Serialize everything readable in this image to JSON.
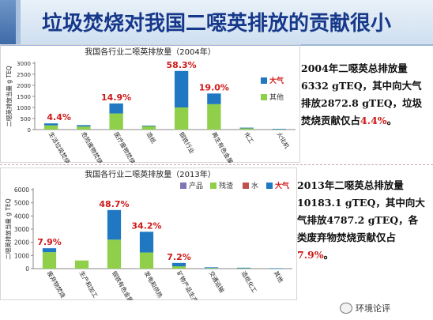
{
  "slide": {
    "title": "垃圾焚烧对我国二噁英排放的贡献很小"
  },
  "chart_data": [
    {
      "type": "bar",
      "stacked": true,
      "title": "我国各行业二噁英排放量（2004年）",
      "ylabel": "二噁英排放当量 g TEQ",
      "ylim": [
        0,
        3000
      ],
      "yticks": [
        0,
        500,
        1000,
        1500,
        2000,
        2500,
        3000
      ],
      "categories": [
        "生活垃圾焚烧",
        "危险废物焚烧",
        "医疗废物焚烧",
        "造纸",
        "钢铁行业",
        "再生有色金属",
        "化工",
        "火化机"
      ],
      "series": [
        {
          "name": "其他",
          "color": "#8fcf4a",
          "values": [
            190,
            140,
            730,
            160,
            1000,
            1150,
            80,
            20
          ]
        },
        {
          "name": "大气",
          "color": "#1f78c1",
          "values": [
            90,
            60,
            450,
            20,
            1650,
            480,
            5,
            10
          ]
        }
      ],
      "annotations": [
        {
          "category_index": 0,
          "text": "4.4%"
        },
        {
          "category_index": 2,
          "text": "14.9%"
        },
        {
          "category_index": 4,
          "text": "58.3%"
        },
        {
          "category_index": 5,
          "text": "19.0%"
        }
      ],
      "legend": "right"
    },
    {
      "type": "bar",
      "stacked": true,
      "title": "我国各行业二噁英排放量（2013年）",
      "ylabel": "二噁英排放当量 g TEQ",
      "ylim": [
        0,
        6000
      ],
      "yticks": [
        0,
        1000,
        2000,
        3000,
        4000,
        5000,
        6000
      ],
      "categories": [
        "废弃物焚烧",
        "生产和加工",
        "钢铁有色金属",
        "发电和供热",
        "矿物产品生产",
        "交通运输",
        "造纸化工",
        "其他"
      ],
      "series": [
        {
          "name": "产品",
          "color": "#8073b8",
          "values": [
            0,
            0,
            0,
            0,
            0,
            0,
            0,
            0
          ]
        },
        {
          "name": "残渣",
          "color": "#8fcf4a",
          "values": [
            1250,
            620,
            2200,
            1230,
            180,
            40,
            40,
            20
          ]
        },
        {
          "name": "水",
          "color": "#c0504d",
          "values": [
            0,
            0,
            0,
            0,
            0,
            0,
            0,
            0
          ]
        },
        {
          "name": "大气",
          "color": "#1f78c1",
          "values": [
            300,
            0,
            2250,
            1570,
            250,
            60,
            30,
            10
          ]
        }
      ],
      "annotations": [
        {
          "category_index": 0,
          "text": "7.9%"
        },
        {
          "category_index": 2,
          "text": "48.7%"
        },
        {
          "category_index": 3,
          "text": "34.2%"
        },
        {
          "category_index": 4,
          "text": "7.2%"
        }
      ],
      "legend": "top"
    }
  ],
  "notes": {
    "n2004": {
      "part1": "2004年二噁英总排放量6332 gTEQ，其中向大气排放2872.8 gTEQ，垃圾焚烧贡献仅占",
      "highlight": "4.4%",
      "part2": "。"
    },
    "n2013": {
      "part1": "2013年二噁英总排放量10183.1 gTEQ，其中向大气排放4787.2 gTEQ，各类废弃物焚烧贡献仅占",
      "highlight": "7.9%",
      "part2": "。"
    }
  },
  "watermark": {
    "text": "环境论评"
  }
}
